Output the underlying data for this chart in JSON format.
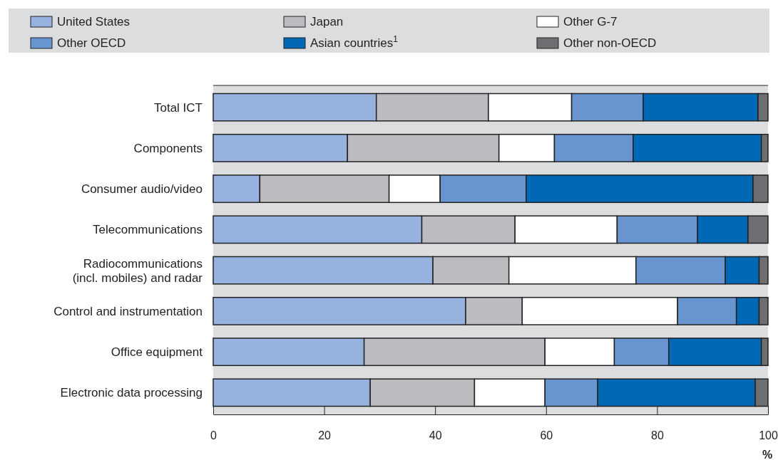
{
  "chart_data": {
    "type": "bar",
    "orientation": "horizontal",
    "stacked": true,
    "legend": "top",
    "xlabel": "%",
    "categories": [
      "Total ICT",
      "Components",
      "Consumer audio/video",
      "Telecommunications",
      "Radiocommunications\n(incl. mobiles) and radar",
      "Control and instrumentation",
      "Office equipment",
      "Electronic data processing"
    ],
    "xlim": [
      0,
      100
    ],
    "xticks": [
      0,
      20,
      40,
      60,
      80,
      100
    ],
    "series": [
      {
        "name": "United States",
        "color": "#97b2de",
        "values": [
          29.4,
          24.2,
          8.4,
          37.6,
          39.6,
          45.5,
          27.2,
          28.3
        ]
      },
      {
        "name": "Japan",
        "color": "#bbbcc0",
        "values": [
          20.2,
          27.3,
          23.3,
          16.8,
          13.7,
          10.2,
          32.6,
          18.8
        ]
      },
      {
        "name": "Other G-7",
        "color": "#ffffff",
        "values": [
          15.0,
          10.0,
          9.2,
          18.4,
          22.9,
          28.0,
          12.5,
          12.7
        ]
      },
      {
        "name": "Other OECD",
        "color": "#6894d0",
        "values": [
          12.9,
          14.2,
          15.5,
          14.5,
          16.1,
          10.6,
          9.8,
          9.5
        ]
      },
      {
        "name": "Asian countries$^{1}$",
        "color": "#0068b4",
        "values": [
          20.7,
          23.1,
          40.9,
          9.1,
          6.1,
          4.1,
          16.7,
          28.4
        ]
      },
      {
        "name": "Other non-OECD",
        "color": "#6d6e72",
        "values": [
          1.8,
          1.2,
          2.7,
          3.6,
          1.6,
          1.6,
          1.2,
          2.3
        ]
      }
    ]
  }
}
